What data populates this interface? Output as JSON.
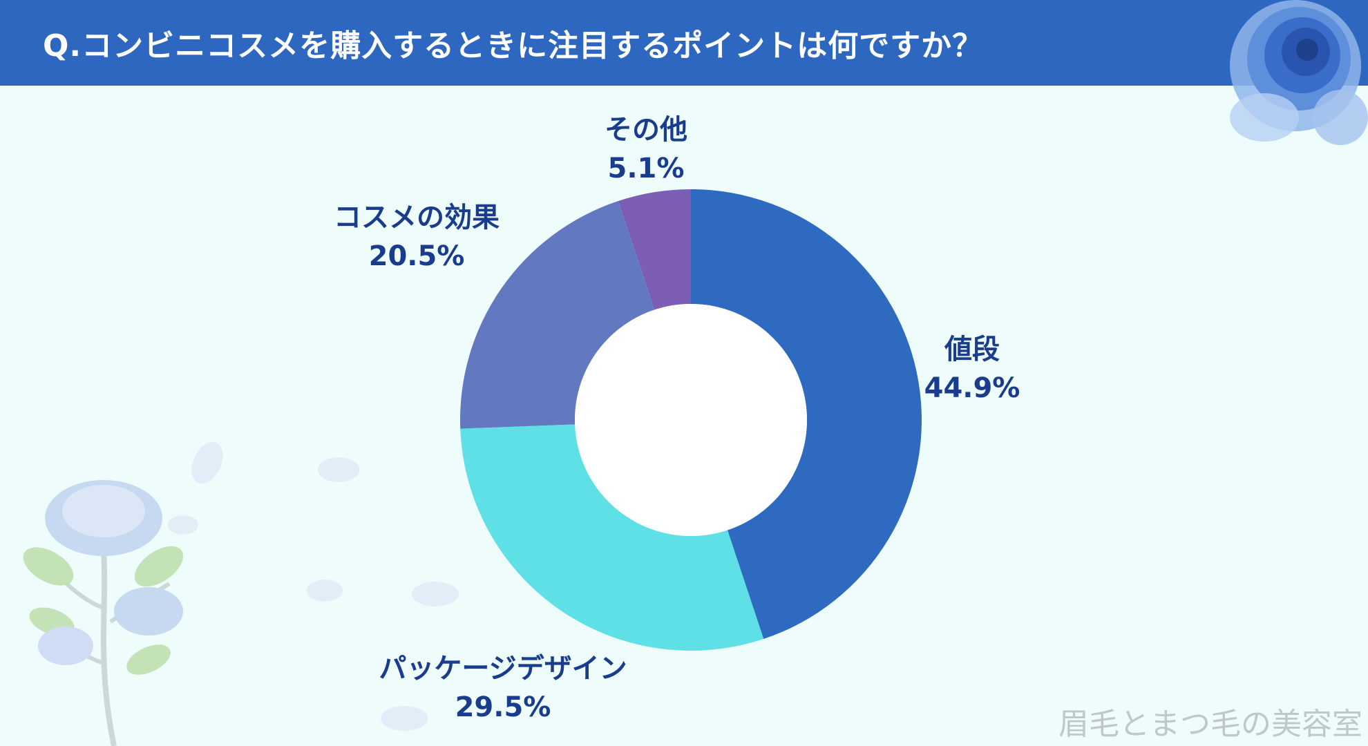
{
  "header": {
    "title": "Q.コンビニコスメを購入するときに注目するポイントは何ですか？"
  },
  "watermark": "眉毛とまつ毛の美容室",
  "colors": {
    "header_bg": "#2e67bf",
    "background": "#eefdfc",
    "label_text": "#1a3c8c"
  },
  "chart_data": {
    "type": "pie",
    "donut": true,
    "title": "",
    "slices": [
      {
        "label": "値段",
        "value": 44.9,
        "value_label": "44.9%",
        "color": "#2e6ac0"
      },
      {
        "label": "パッケージデザイン",
        "value": 29.5,
        "value_label": "29.5%",
        "color": "#5fe0e6"
      },
      {
        "label": "コスメの効果",
        "value": 20.5,
        "value_label": "20.5%",
        "color": "#6278c1"
      },
      {
        "label": "その他",
        "value": 5.1,
        "value_label": "5.1%",
        "color": "#7c5fb5"
      }
    ]
  }
}
